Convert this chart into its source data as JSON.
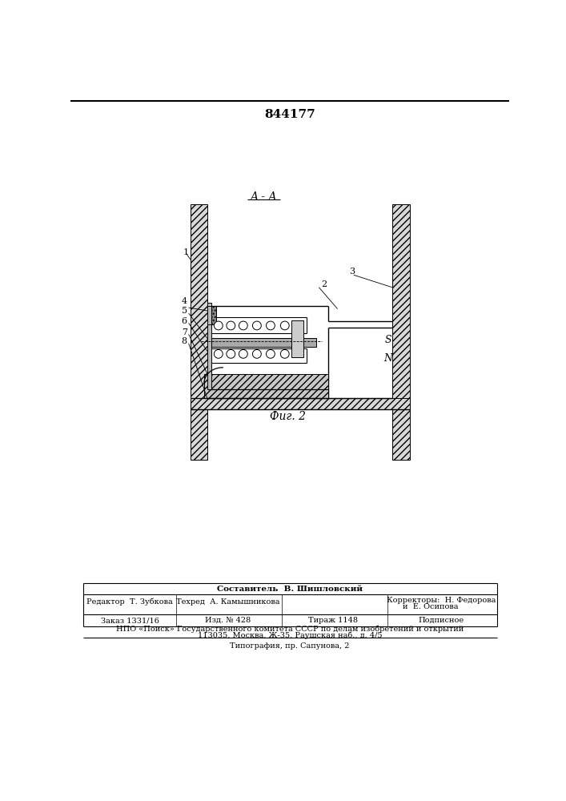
{
  "patent_number": "844177",
  "section_label": "A - A",
  "fig_label": "Фиг. 2",
  "bg_color": "#ffffff",
  "line_color": "#000000",
  "footer": {
    "sestavitel": "Составитель  В. Шишловский",
    "redaktor": "Редактор  Т. Зубкова",
    "tehred": "Техред  А. Камышникова",
    "korrektory1": "Корректоры:  Н. Федорова",
    "korrektory2": "и  Е. Осипова",
    "zakaz": "Заказ 1331/16",
    "izd": "Изд. № 428",
    "tirazh": "Тираж 1148",
    "podpisnoe": "Подписное",
    "npo": "НПО «Поиск» Государственного комитета СССР по делам изобретений и открытий",
    "address": "113035, Москва, Ж-35, Раушская наб., д. 4/5",
    "tipografiya": "Типография, пр. Сапунова, 2"
  }
}
